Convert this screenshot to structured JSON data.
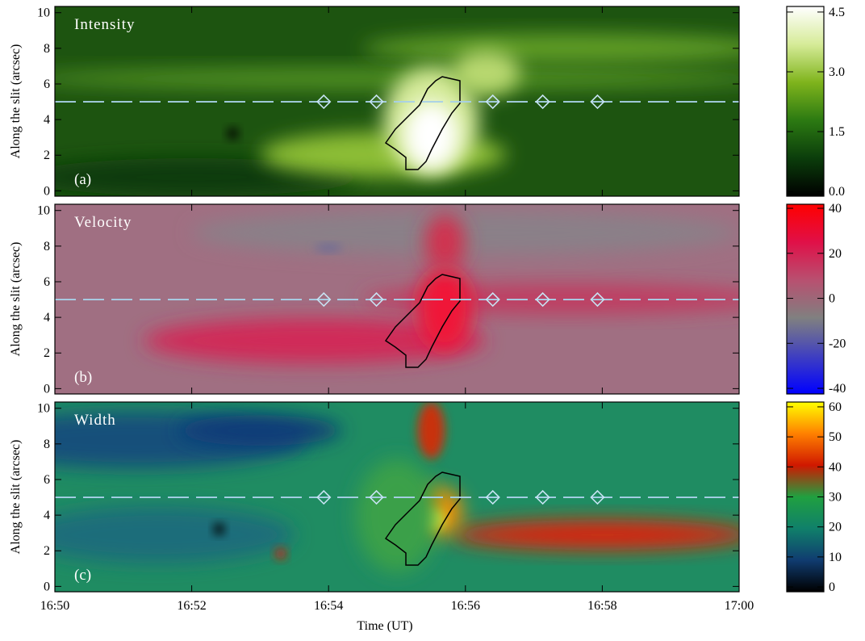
{
  "chart_data": [
    {
      "type": "heatmap",
      "label": "Intensity",
      "panel": "(a)",
      "ylabel": "Along the slit (arcsec)",
      "ylim": [
        -0.3,
        10.35
      ],
      "yticks": [
        0,
        2,
        4,
        6,
        8,
        10
      ],
      "slit_y": 5,
      "markers_x": [
        1013.93,
        1014.7,
        1016.4,
        1017.13,
        1017.93
      ],
      "colormap": [
        "#000000",
        "#0b3d0b",
        "#2c7a12",
        "#7fb41c",
        "#d6eb98",
        "#ffffff"
      ],
      "colorbar_lim": [
        -0.12,
        4.64
      ],
      "colorbar_ticks": [
        {
          "value": 0,
          "label": "0.0"
        },
        {
          "value": 1.5,
          "label": "1.5"
        },
        {
          "value": 3,
          "label": "3.0"
        },
        {
          "value": 4.5,
          "label": "4.5"
        }
      ]
    },
    {
      "type": "heatmap",
      "label": "Velocity",
      "panel": "(b)",
      "ylabel": "Along the slit (arcsec)",
      "ylim": [
        -0.3,
        10.35
      ],
      "yticks": [
        0,
        2,
        4,
        6,
        8,
        10
      ],
      "slit_y": 5,
      "markers_x": [
        1013.93,
        1014.7,
        1016.4,
        1017.13,
        1017.93
      ],
      "colormap": [
        "#0000ff",
        "#4040c0",
        "#808080",
        "#b85070",
        "#e01048",
        "#ff0000"
      ],
      "colorbar_lim": [
        -42.5,
        41.8
      ],
      "colorbar_ticks": [
        -40,
        -20,
        0,
        20,
        40
      ]
    },
    {
      "type": "heatmap",
      "label": "Width",
      "panel": "(c)",
      "ylabel": "Along the slit (arcsec)",
      "ylim": [
        -0.3,
        10.35
      ],
      "yticks": [
        0,
        2,
        4,
        6,
        8,
        10
      ],
      "slit_y": 5,
      "markers_x": [
        1013.93,
        1014.7,
        1016.4,
        1017.13,
        1017.93
      ],
      "colormap": [
        "#000000",
        "#103c70",
        "#10806a",
        "#20a040",
        "#d01800",
        "#ff8000",
        "#ffff00"
      ],
      "colorbar_lim": [
        -1.6,
        61.6
      ],
      "colorbar_ticks": [
        0,
        10,
        20,
        30,
        40,
        50,
        60
      ],
      "xlabel": "Time (UT)",
      "xlim": [
        1010,
        1020
      ],
      "xticks": [
        {
          "value": 1010,
          "label": "16:50"
        },
        {
          "value": 1012,
          "label": "16:52"
        },
        {
          "value": 1014,
          "label": "16:54"
        },
        {
          "value": 1016,
          "label": "16:56"
        },
        {
          "value": 1018,
          "label": "16:58"
        },
        {
          "value": 1020,
          "label": "17:00"
        }
      ]
    }
  ]
}
